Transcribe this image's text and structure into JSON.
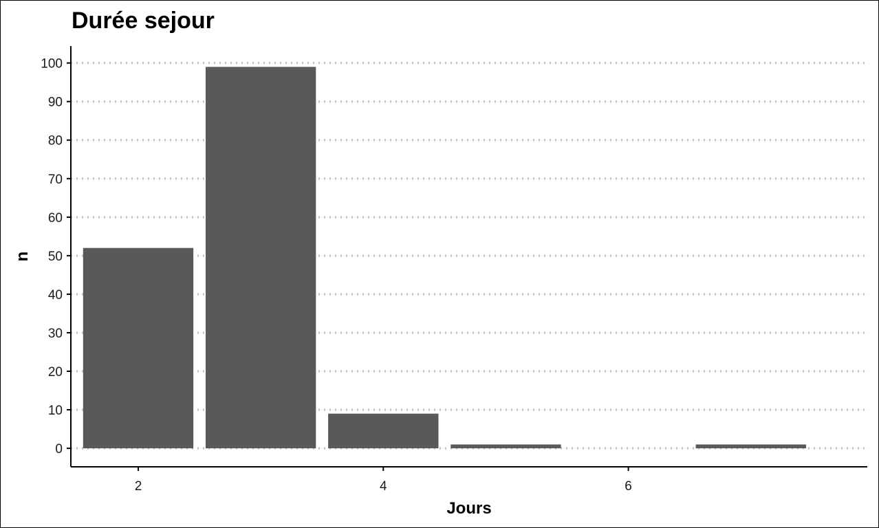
{
  "chart_data": {
    "type": "bar",
    "title": "Durée sejour",
    "xlabel": "Jours",
    "ylabel": "n",
    "x": [
      2,
      3,
      4,
      5,
      6,
      7
    ],
    "values": [
      52,
      99,
      9,
      1,
      0,
      1
    ],
    "xticks": [
      2,
      4,
      6
    ],
    "yticks": [
      0,
      10,
      20,
      30,
      40,
      50,
      60,
      70,
      80,
      90,
      100
    ],
    "xlim": [
      1.45,
      7.95
    ],
    "ylim": [
      -4.8,
      104.4
    ],
    "grid": "horizontal dotted",
    "colors": {
      "bar": "#595959",
      "grid": "#bdbdbd",
      "axis": "#000000"
    }
  }
}
